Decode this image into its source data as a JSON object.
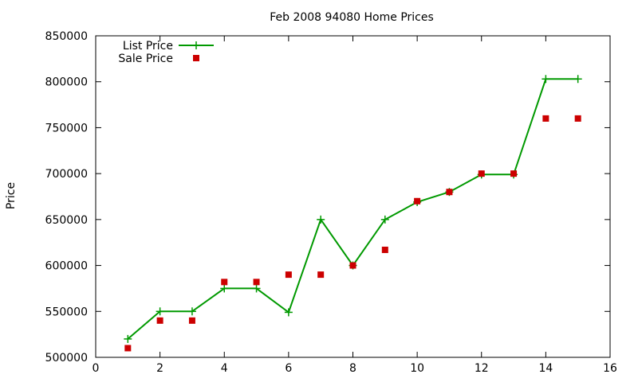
{
  "chart_data": {
    "type": "line",
    "title": "Feb 2008 94080 Home Prices",
    "xlabel": "",
    "ylabel": "Price",
    "xlim": [
      0,
      16
    ],
    "ylim": [
      500000,
      850000
    ],
    "xticks": [
      0,
      2,
      4,
      6,
      8,
      10,
      12,
      14,
      16
    ],
    "yticks": [
      500000,
      550000,
      600000,
      650000,
      700000,
      750000,
      800000,
      850000
    ],
    "x_tick_labels": [
      "0",
      "2",
      "4",
      "6",
      "8",
      "10",
      "12",
      "14",
      "16"
    ],
    "y_tick_labels": [
      "500000",
      "550000",
      "600000",
      "650000",
      "700000",
      "750000",
      "800000",
      "850000"
    ],
    "grid": false,
    "legend_position": "top-left",
    "series": [
      {
        "name": "List Price",
        "style": "line-with-plus-markers",
        "color": "#009900",
        "x": [
          1,
          2,
          3,
          4,
          5,
          6,
          7,
          8,
          9,
          10,
          11,
          12,
          13,
          14,
          15
        ],
        "y": [
          520000,
          550000,
          550000,
          575000,
          575000,
          549000,
          650000,
          600000,
          650000,
          669000,
          680000,
          699000,
          699000,
          803000,
          803000
        ]
      },
      {
        "name": "Sale Price",
        "style": "square-markers",
        "color": "#cc0000",
        "x": [
          1,
          2,
          3,
          4,
          5,
          6,
          7,
          8,
          9,
          10,
          11,
          12,
          13,
          14,
          15
        ],
        "y": [
          510000,
          540000,
          540000,
          582000,
          582000,
          590000,
          590000,
          600000,
          617000,
          670000,
          680000,
          700000,
          700000,
          760000,
          760000
        ]
      }
    ]
  }
}
